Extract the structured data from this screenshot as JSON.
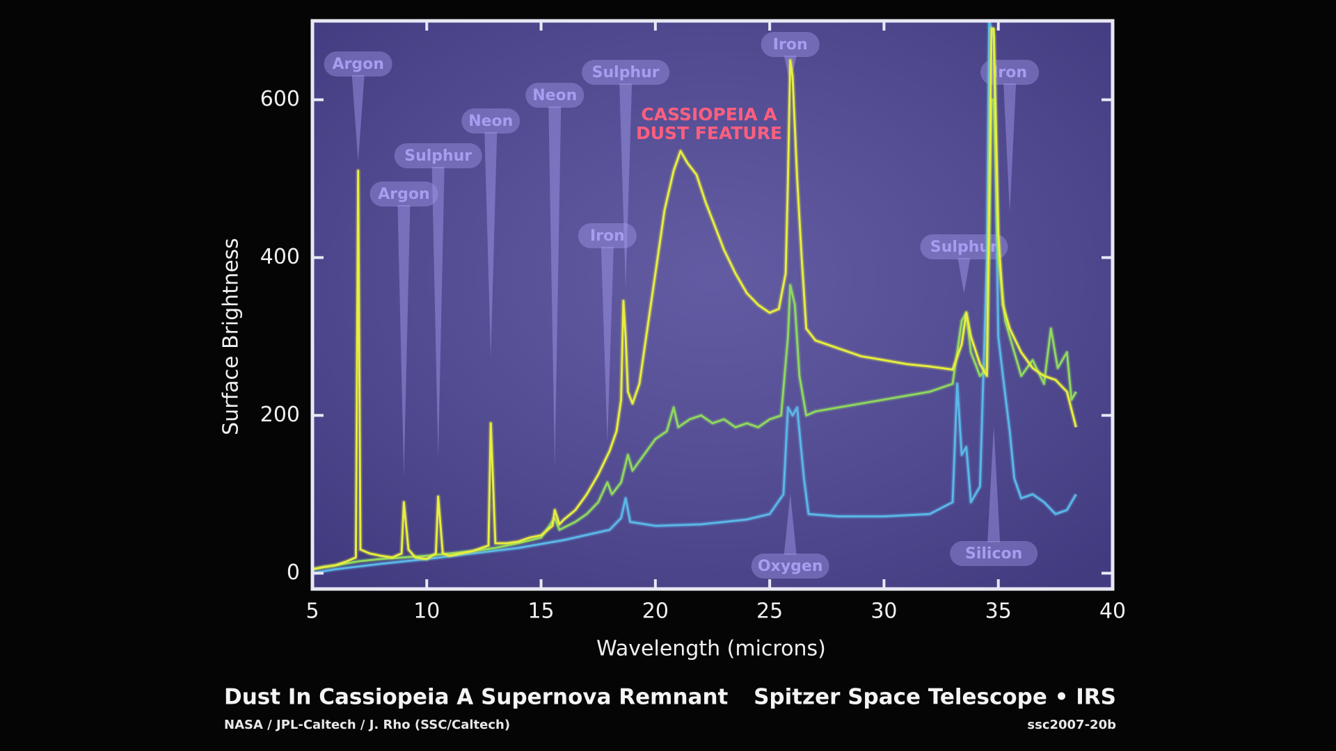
{
  "chart_data": {
    "type": "line",
    "x_label": "Wavelength (microns)",
    "y_label": "Surface Brightness",
    "xlim": [
      5,
      40
    ],
    "ylim": [
      -20,
      700
    ],
    "xticks": [
      5,
      10,
      15,
      20,
      25,
      30,
      35,
      40
    ],
    "yticks": [
      0,
      200,
      400,
      600
    ],
    "background": "#4d4596",
    "frame_color": "#e8e8f4",
    "series": [
      {
        "color": "#e8ee3e",
        "x": [
          5.0,
          5.5,
          6.0,
          6.5,
          6.9,
          7.0,
          7.1,
          7.5,
          8.0,
          8.5,
          8.9,
          9.0,
          9.2,
          9.5,
          10.0,
          10.4,
          10.5,
          10.7,
          11.0,
          12.0,
          12.7,
          12.8,
          13.0,
          13.5,
          14.0,
          14.5,
          15.0,
          15.5,
          15.6,
          15.8,
          16.0,
          16.5,
          17.0,
          17.5,
          18.0,
          18.3,
          18.5,
          18.6,
          18.7,
          18.8,
          19.0,
          19.3,
          19.6,
          20.0,
          20.4,
          20.8,
          21.1,
          21.4,
          21.8,
          22.2,
          22.6,
          23.0,
          23.5,
          24.0,
          24.5,
          25.0,
          25.4,
          25.7,
          25.8,
          25.9,
          26.0,
          26.2,
          26.4,
          26.6,
          27.0,
          28.0,
          29.0,
          30.0,
          31.0,
          32.0,
          33.0,
          33.4,
          33.6,
          33.8,
          34.2,
          34.5,
          34.7,
          34.8,
          35.0,
          35.2,
          35.5,
          36.0,
          36.5,
          37.0,
          37.5,
          38.0,
          38.4
        ],
        "values": [
          5,
          8,
          10,
          15,
          20,
          510,
          30,
          25,
          22,
          20,
          25,
          90,
          30,
          20,
          18,
          25,
          97,
          25,
          22,
          28,
          35,
          190,
          38,
          38,
          40,
          45,
          48,
          60,
          80,
          62,
          68,
          80,
          100,
          125,
          155,
          180,
          220,
          345,
          300,
          230,
          215,
          240,
          300,
          380,
          460,
          510,
          535,
          520,
          505,
          470,
          440,
          410,
          380,
          355,
          340,
          330,
          335,
          380,
          500,
          650,
          630,
          500,
          400,
          310,
          295,
          285,
          275,
          270,
          265,
          262,
          258,
          290,
          330,
          300,
          265,
          250,
          690,
          690,
          430,
          340,
          310,
          280,
          260,
          250,
          245,
          230,
          185
        ]
      },
      {
        "color": "#8fd860",
        "x": [
          5.0,
          6.0,
          7.0,
          8.0,
          9.0,
          10.0,
          11.0,
          12.0,
          13.0,
          14.0,
          15.0,
          15.6,
          15.8,
          16.5,
          17.0,
          17.5,
          17.9,
          18.1,
          18.5,
          18.8,
          19.0,
          19.5,
          20.0,
          20.5,
          20.8,
          21.0,
          21.5,
          22.0,
          22.5,
          23.0,
          23.5,
          24.0,
          24.5,
          25.0,
          25.5,
          25.8,
          25.9,
          26.1,
          26.3,
          26.6,
          27.0,
          28.0,
          29.0,
          30.0,
          31.0,
          32.0,
          33.0,
          33.4,
          33.6,
          33.8,
          34.2,
          34.5,
          34.7,
          34.8,
          35.0,
          35.3,
          35.6,
          36.0,
          36.5,
          37.0,
          37.3,
          37.6,
          38.0,
          38.2,
          38.4
        ],
        "values": [
          5,
          10,
          15,
          18,
          20,
          22,
          25,
          28,
          32,
          38,
          45,
          70,
          55,
          65,
          75,
          90,
          115,
          100,
          115,
          150,
          130,
          150,
          170,
          180,
          210,
          185,
          195,
          200,
          190,
          195,
          185,
          190,
          185,
          195,
          200,
          300,
          365,
          340,
          250,
          200,
          205,
          210,
          215,
          220,
          225,
          230,
          240,
          320,
          330,
          280,
          250,
          260,
          600,
          600,
          400,
          320,
          290,
          250,
          270,
          240,
          310,
          260,
          280,
          220,
          230
        ]
      },
      {
        "color": "#5ab8e8",
        "x": [
          5.0,
          6.0,
          8.0,
          10.0,
          12.0,
          14.0,
          16.0,
          18.0,
          18.5,
          18.7,
          18.9,
          20.0,
          22.0,
          24.0,
          25.0,
          25.6,
          25.8,
          26.0,
          26.2,
          26.5,
          26.7,
          28.0,
          30.0,
          32.0,
          33.0,
          33.2,
          33.4,
          33.6,
          33.8,
          34.2,
          34.5,
          34.6,
          34.8,
          35.0,
          35.2,
          35.5,
          35.7,
          36.0,
          36.5,
          37.0,
          37.5,
          38.0,
          38.4
        ],
        "values": [
          0,
          5,
          12,
          18,
          25,
          32,
          42,
          55,
          70,
          95,
          65,
          60,
          62,
          68,
          75,
          100,
          210,
          200,
          210,
          120,
          75,
          72,
          72,
          75,
          90,
          240,
          150,
          160,
          90,
          110,
          400,
          700,
          680,
          300,
          250,
          180,
          120,
          95,
          100,
          90,
          75,
          80,
          100
        ]
      }
    ],
    "annotations": [
      {
        "text": "Argon",
        "x": 7.0
      },
      {
        "text": "Argon",
        "x": 9.0
      },
      {
        "text": "Sulphur",
        "x": 10.5
      },
      {
        "text": "Neon",
        "x": 12.8
      },
      {
        "text": "Neon",
        "x": 15.6
      },
      {
        "text": "Sulphur",
        "x": 18.7
      },
      {
        "text": "Iron",
        "x": 17.9
      },
      {
        "text": "Iron",
        "x": 25.9
      },
      {
        "text": "Sulphur",
        "x": 33.5
      },
      {
        "text": "Iron",
        "x": 35.5
      },
      {
        "text": "Oxygen",
        "x": 25.9
      },
      {
        "text": "Silicon",
        "x": 34.8
      }
    ],
    "feature_label": {
      "lines": [
        "CASSIOPEIA A",
        "DUST FEATURE"
      ],
      "color": "#ff5f7e"
    },
    "footer": {
      "title": "Dust In Cassiopeia A Supernova Remnant",
      "credit": "NASA / JPL-Caltech / J. Rho (SSC/Caltech)",
      "mission": "Spitzer Space Telescope • IRS",
      "id": "ssc2007-20b"
    }
  }
}
